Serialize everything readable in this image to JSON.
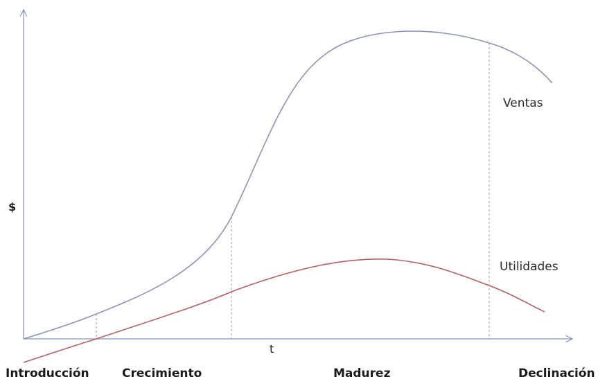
{
  "diagram": {
    "y_axis_label": "$",
    "x_axis_label": "t",
    "series": {
      "sales": {
        "label": "Ventas",
        "color": "#8a94b8"
      },
      "profit": {
        "label": "Utilidades",
        "color": "#b35f5f"
      }
    },
    "stages": [
      {
        "label": "Introducción"
      },
      {
        "label": "Crecimiento"
      },
      {
        "label": "Madurez"
      },
      {
        "label": "Declinación"
      }
    ],
    "colors": {
      "axis": "#8a94b8",
      "divider": "#8a94b8"
    }
  }
}
